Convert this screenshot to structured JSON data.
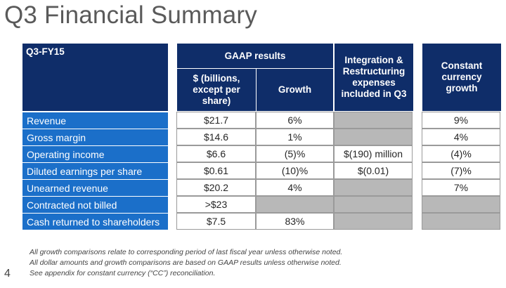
{
  "slide": {
    "title": "Q3 Financial Summary",
    "page_number": "4"
  },
  "table": {
    "corner_label": "Q3-FY15",
    "group_header": "GAAP results",
    "col_dollars": "$ (billions, except per share)",
    "col_growth": "Growth",
    "col_integration": "Integration & Restructuring expenses included in Q3",
    "col_cc": "Constant currency growth",
    "rows": [
      {
        "label": "Revenue",
        "dollars": "$21.7",
        "growth": "6%",
        "integration": "",
        "cc": "9%"
      },
      {
        "label": "Gross margin",
        "dollars": "$14.6",
        "growth": "1%",
        "integration": "",
        "cc": "4%"
      },
      {
        "label": "Operating income",
        "dollars": "$6.6",
        "growth": "(5)%",
        "integration": "$(190) million",
        "cc": "(4)%"
      },
      {
        "label": "Diluted earnings per share",
        "dollars": "$0.61",
        "growth": "(10)%",
        "integration": "$(0.01)",
        "cc": "(7)%"
      },
      {
        "label": "Unearned revenue",
        "dollars": "$20.2",
        "growth": "4%",
        "integration": "",
        "cc": "7%"
      },
      {
        "label": "Contracted not billed",
        "dollars": ">$23",
        "growth": "",
        "integration": "",
        "cc": ""
      },
      {
        "label": "Cash returned to shareholders",
        "dollars": "$7.5",
        "growth": "83%",
        "integration": "",
        "cc": ""
      }
    ]
  },
  "footnotes": [
    "All growth comparisons relate to corresponding period of last fiscal year unless otherwise noted.",
    "All dollar amounts and growth comparisons are based on GAAP results unless otherwise noted.",
    "See appendix for constant currency (“CC”) reconciliation."
  ],
  "colors": {
    "header_navy": "#0f2d69",
    "row_label_blue": "#1b6fc9",
    "empty_cell_gray": "#b8b8b8"
  }
}
